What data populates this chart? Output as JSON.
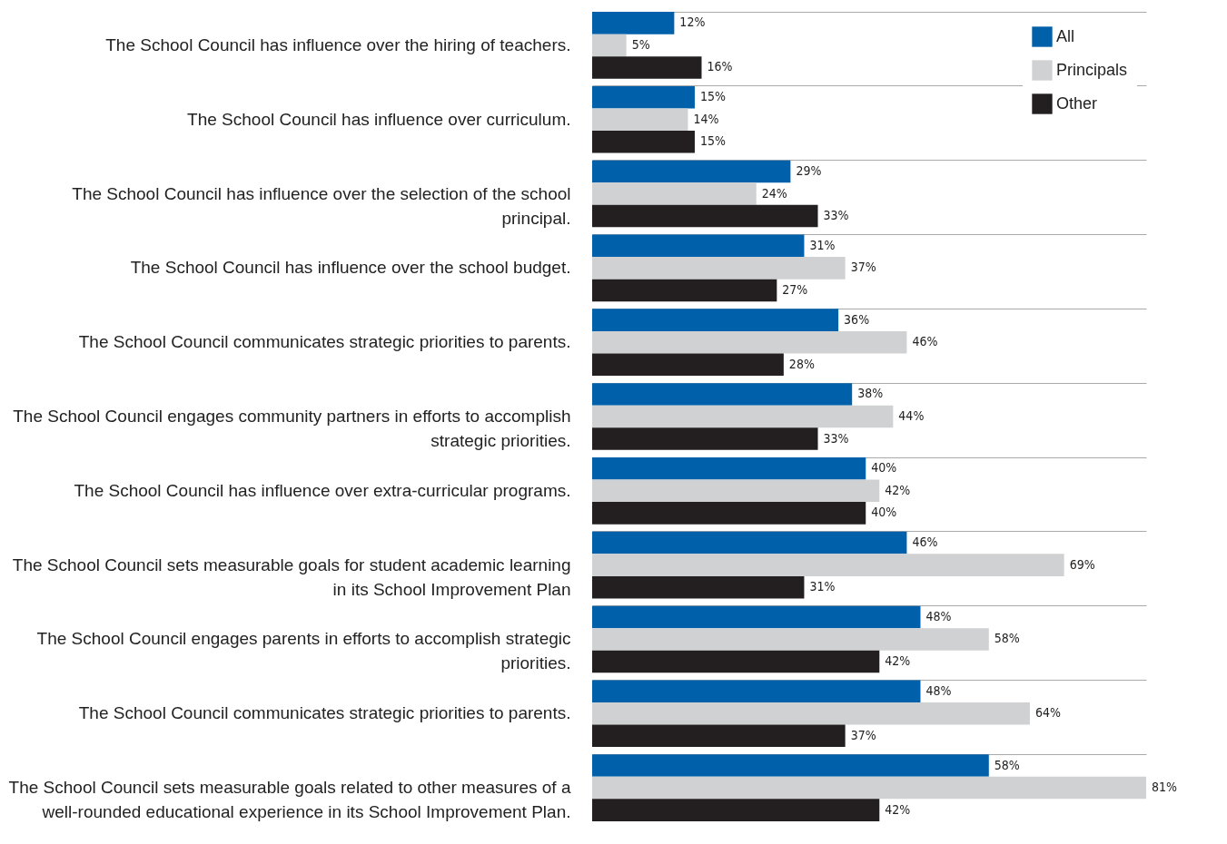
{
  "chart_data": {
    "type": "bar",
    "orientation": "horizontal",
    "grid": "y",
    "legend": "top right",
    "tick_labels": "y",
    "categories": [
      "The School Council has influence over the hiring of teachers.",
      "The School Council has influence over curriculum.",
      "The School Council has influence over the selection of the school principal.",
      "The School Council has influence over the school budget.",
      "The School Council communicates strategic priorities to parents.",
      "The School Council engages community partners in efforts to accomplish strategic priorities.",
      "The School Council has influence over extra-curricular programs.",
      "The School Council sets measurable goals for student academic learning in its School Improvement Plan",
      "The School Council engages parents in efforts to accomplish strategic priorities.",
      "The School Council communicates strategic priorities to parents.",
      "The School Council sets measurable goals related to other measures of a well-rounded educational experience in its School Improvement Plan."
    ],
    "series": [
      {
        "name": "All",
        "color": "#0060a9",
        "values": [
          12,
          15,
          29,
          31,
          36,
          38,
          40,
          46,
          48,
          48,
          58
        ],
        "value_labels": [
          "12%",
          "15%",
          "29%",
          "31%",
          "36%",
          "38%",
          "40%",
          "46%",
          "48%",
          "48%",
          "58%"
        ]
      },
      {
        "name": "Principals",
        "color": "#d0d1d3",
        "values": [
          5,
          14,
          24,
          37,
          46,
          44,
          42,
          69,
          58,
          64,
          81
        ],
        "value_labels": [
          "5%",
          "14%",
          "24%",
          "37%",
          "46%",
          "44%",
          "42%",
          "69%",
          "58%",
          "64%",
          "81%"
        ]
      },
      {
        "name": "Other",
        "color": "#231f20",
        "values": [
          16,
          15,
          33,
          27,
          28,
          33,
          40,
          31,
          42,
          37,
          42
        ],
        "value_labels": [
          "16%",
          "15%",
          "33%",
          "27%",
          "28%",
          "33%",
          "40%",
          "31%",
          "42%",
          "37%",
          "42%"
        ]
      }
    ]
  }
}
